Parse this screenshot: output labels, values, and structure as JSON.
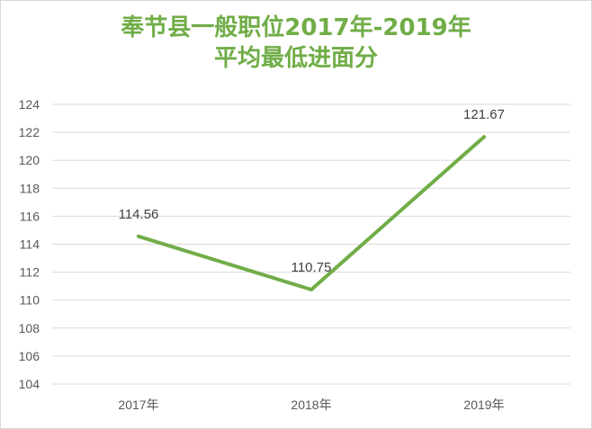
{
  "chart_data": {
    "type": "line",
    "title_lines": [
      "奉节县一般职位2017年-2019年",
      "平均最低进面分"
    ],
    "categories": [
      "2017年",
      "2018年",
      "2019年"
    ],
    "series": [
      {
        "values": [
          114.56,
          110.75,
          121.67
        ],
        "data_labels": [
          "114.56",
          "110.75",
          "121.67"
        ]
      }
    ],
    "ylim": [
      104,
      124
    ],
    "y_ticks": [
      104,
      106,
      108,
      110,
      112,
      114,
      116,
      118,
      120,
      122,
      124
    ],
    "grid": true,
    "xlabel": "",
    "ylabel": "",
    "colors": {
      "line": "#70ad47",
      "title": "#70ad47",
      "grid": "#d9d9d9",
      "axis_text": "#595959"
    }
  }
}
